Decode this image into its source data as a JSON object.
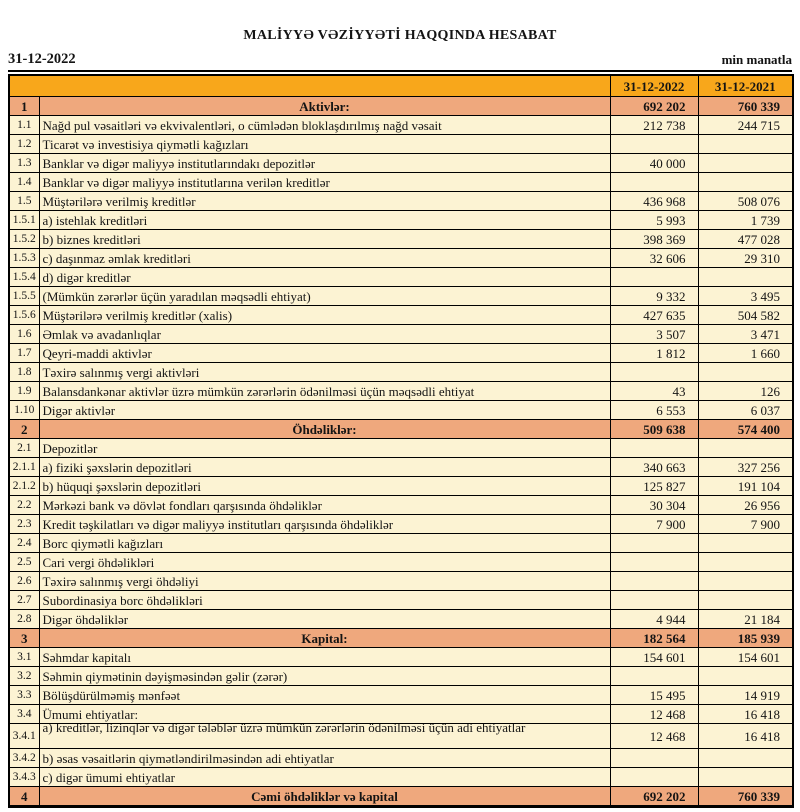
{
  "title": "MALİYYƏ VƏZİYYƏTİ HAQQINDA HESABAT",
  "meta": {
    "date": "31-12-2022",
    "unit": "min manatla"
  },
  "colors": {
    "header_bg": "#F8A71B",
    "section_bg": "#EFA87D",
    "row_bg": "#FCF3D3",
    "border": "#000000",
    "text": "#141414"
  },
  "table": {
    "columns": [
      "31-12-2022",
      "31-12-2021"
    ],
    "rows": [
      {
        "no": "1",
        "label": "Aktivlər:",
        "v2022": "692 202",
        "v2021": "760 339",
        "type": "section"
      },
      {
        "no": "1.1",
        "label": "Nağd pul vəsaitləri və  ekvivalentləri, o cümlədən bloklaşdırılmış nağd vəsait",
        "v2022": "212 738",
        "v2021": "244 715",
        "type": "data"
      },
      {
        "no": "1.2",
        "label": "Ticarət və investisiya qiymətli kağızları",
        "v2022": "",
        "v2021": "",
        "type": "data"
      },
      {
        "no": "1.3",
        "label": "Banklar və digər maliyyə institutlarındakı depozitlər",
        "v2022": "40 000",
        "v2021": "",
        "type": "data"
      },
      {
        "no": "1.4",
        "label": "Banklar və digər maliyyə institutlarına verilən kreditlər",
        "v2022": "",
        "v2021": "",
        "type": "data"
      },
      {
        "no": "1.5",
        "label": "Müştərilərə verilmiş kreditlər",
        "v2022": "436 968",
        "v2021": "508 076",
        "type": "data"
      },
      {
        "no": "1.5.1",
        "label": "a) istehlak kreditləri",
        "v2022": "5 993",
        "v2021": "1 739",
        "type": "data"
      },
      {
        "no": "1.5.2",
        "label": "b) biznes kreditləri",
        "v2022": "398 369",
        "v2021": "477 028",
        "type": "data"
      },
      {
        "no": "1.5.3",
        "label": "c) daşınmaz əmlak kreditləri",
        "v2022": "32 606",
        "v2021": "29 310",
        "type": "data"
      },
      {
        "no": "1.5.4",
        "label": "d) digər kreditlər",
        "v2022": "",
        "v2021": "",
        "type": "data"
      },
      {
        "no": "1.5.5",
        "label": "(Mümkün zərərlər üçün yaradılan məqsədli ehtiyat)",
        "v2022": "9 332",
        "v2021": "3 495",
        "type": "data"
      },
      {
        "no": "1.5.6",
        "label": "Müştərilərə verilmiş kreditlər (xalis)",
        "v2022": "427 635",
        "v2021": "504 582",
        "type": "data"
      },
      {
        "no": "1.6",
        "label": "Əmlak və avadanlıqlar",
        "v2022": "3 507",
        "v2021": "3 471",
        "type": "data"
      },
      {
        "no": "1.7",
        "label": "Qeyri-maddi aktivlər",
        "v2022": "1 812",
        "v2021": "1 660",
        "type": "data"
      },
      {
        "no": "1.8",
        "label": "Təxirə salınmış vergi aktivləri",
        "v2022": "",
        "v2021": "",
        "type": "data"
      },
      {
        "no": "1.9",
        "label": "Balansdankənar aktivlər üzrə mümkün zərərlərin ödənilməsi üçün məqsədli ehtiyat",
        "v2022": "43",
        "v2021": "126",
        "type": "data"
      },
      {
        "no": "1.10",
        "label": "Digər aktivlər",
        "v2022": "6 553",
        "v2021": "6 037",
        "type": "data"
      },
      {
        "no": "2",
        "label": "Öhdəliklər:",
        "v2022": "509 638",
        "v2021": "574 400",
        "type": "section"
      },
      {
        "no": "2.1",
        "label": "Depozitlər",
        "v2022": "",
        "v2021": "",
        "type": "data"
      },
      {
        "no": "2.1.1",
        "label": "a) fiziki şəxslərin depozitləri",
        "v2022": "340 663",
        "v2021": "327 256",
        "type": "data"
      },
      {
        "no": "2.1.2",
        "label": "b) hüquqi şəxslərin depozitləri",
        "v2022": "125 827",
        "v2021": "191 104",
        "type": "data"
      },
      {
        "no": "2.2",
        "label": "Mərkəzi bank və dövlət fondları qarşısında öhdəliklər",
        "v2022": "30 304",
        "v2021": "26 956",
        "type": "data"
      },
      {
        "no": "2.3",
        "label": "Kredit təşkilatları və digər maliyyə institutları qarşısında öhdəliklər",
        "v2022": "7 900",
        "v2021": "7 900",
        "type": "data"
      },
      {
        "no": "2.4",
        "label": "Borc qiymətli kağızları",
        "v2022": "",
        "v2021": "",
        "type": "data"
      },
      {
        "no": "2.5",
        "label": "Cari vergi öhdəlikləri",
        "v2022": "",
        "v2021": "",
        "type": "data"
      },
      {
        "no": "2.6",
        "label": "Təxirə salınmış vergi öhdəliyi",
        "v2022": "",
        "v2021": "",
        "type": "data"
      },
      {
        "no": "2.7",
        "label": "Subordinasiya borc öhdəlikləri",
        "v2022": "",
        "v2021": "",
        "type": "data"
      },
      {
        "no": "2.8",
        "label": "Digər öhdəliklər",
        "v2022": "4 944",
        "v2021": "21 184",
        "type": "data"
      },
      {
        "no": "3",
        "label": "Kapital:",
        "v2022": "182 564",
        "v2021": "185 939",
        "type": "section"
      },
      {
        "no": "3.1",
        "label": "Səhmdar kapitalı",
        "v2022": "154 601",
        "v2021": "154 601",
        "type": "data"
      },
      {
        "no": "3.2",
        "label": "Səhmin qiymətinin dəyişməsindən gəlir (zərər)",
        "v2022": "",
        "v2021": "",
        "type": "data"
      },
      {
        "no": "3.3",
        "label": "Bölüşdürülməmiş mənfəət",
        "v2022": "15 495",
        "v2021": "14 919",
        "type": "data"
      },
      {
        "no": "3.4",
        "label": "Ümumi ehtiyatlar:",
        "v2022": "12 468",
        "v2021": "16 418",
        "type": "data"
      },
      {
        "no": "3.4.1",
        "label": "a) kreditlər, lizinqlər və digər tələblər üzrə mümkün zərərlərin ödənilməsi üçün adi ehtiyatlar",
        "v2022": "12 468",
        "v2021": "16 418",
        "type": "data",
        "clipped": true
      },
      {
        "no": "3.4.2",
        "label": "b) əsas vəsaitlərin qiymətləndirilməsindən adi ehtiyatlar",
        "v2022": "",
        "v2021": "",
        "type": "data"
      },
      {
        "no": "3.4.3",
        "label": "c) digər ümumi ehtiyatlar",
        "v2022": "",
        "v2021": "",
        "type": "data"
      },
      {
        "no": "4",
        "label": "Cəmi öhdəliklər və kapital",
        "v2022": "692 202",
        "v2021": "760 339",
        "type": "section"
      }
    ]
  }
}
